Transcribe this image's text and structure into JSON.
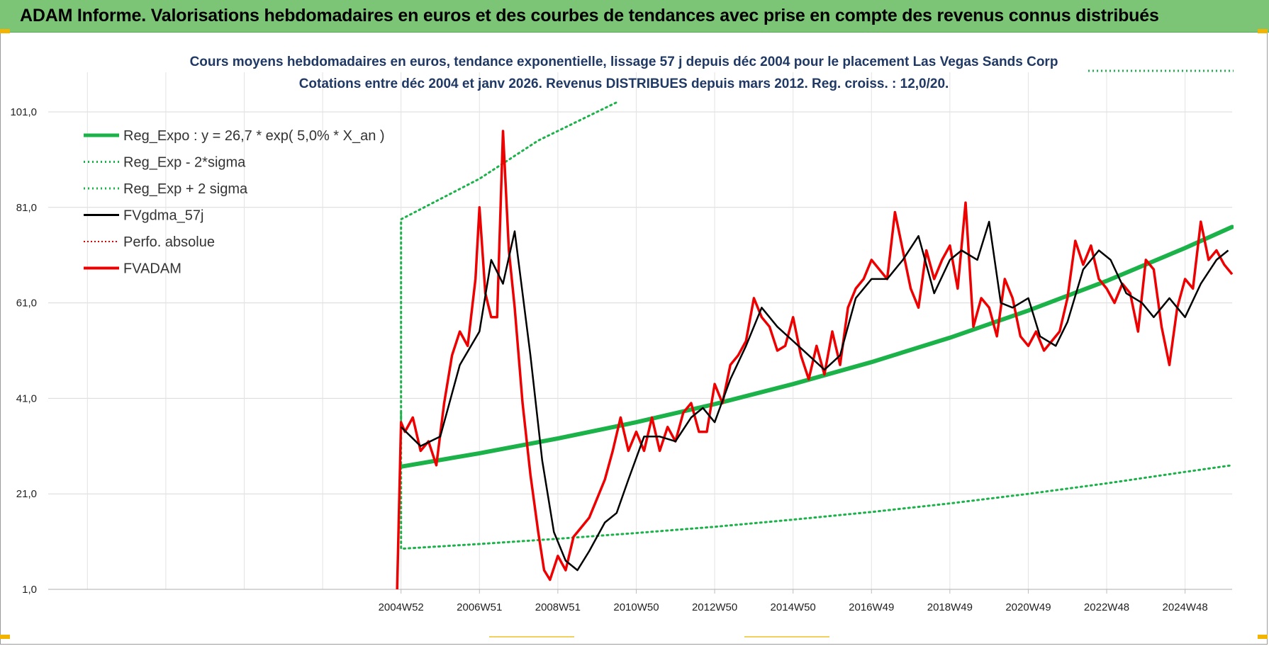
{
  "banner": {
    "title": "ADAM Informe. Valorisations hebdomadaires en euros et des courbes de tendances avec prise en compte des revenus connus distribués"
  },
  "colors": {
    "banner_bg": "#7cc576",
    "reg_expo": "#1cb24a",
    "reg_band": "#1cb24a",
    "fvgdma": "#000000",
    "perfo": "#e00000",
    "fvadam": "#ee0000",
    "title": "#1f3864"
  },
  "chart_data": {
    "type": "line",
    "title": "Cours moyens hebdomadaires en euros, tendance exponentielle, lissage 57 j depuis déc 2004 pour le placement Las Vegas Sands Corp",
    "subtitle": "Cotations entre déc 2004 et janv 2026. Revenus DISTRIBUES depuis mars 2012. Reg. croiss. : 12,0/20.",
    "ylim": [
      1,
      101
    ],
    "y_ticks": [
      "101,0",
      "81,0",
      "61,0",
      "41,0",
      "21,0",
      "1,0"
    ],
    "y_tick_values": [
      101,
      81,
      61,
      41,
      21,
      1
    ],
    "x_ticks": [
      "2004W52",
      "2006W51",
      "2008W51",
      "2010W50",
      "2012W50",
      "2014W50",
      "2016W49",
      "2018W49",
      "2020W49",
      "2022W48",
      "2024W48"
    ],
    "x_tick_years": [
      2005.0,
      2007.0,
      2009.0,
      2011.0,
      2013.0,
      2015.0,
      2017.0,
      2019.0,
      2021.0,
      2023.0,
      2025.0
    ],
    "xlim": [
      1996.0,
      2026.2
    ],
    "legend_position": "top-left",
    "legend": [
      {
        "key": "reg_expo",
        "label": "Reg_Expo : y = 26,7 * exp( 5,0% *  X_an )",
        "style": "thick"
      },
      {
        "key": "reg_low",
        "label": "Reg_Exp - 2*sigma",
        "style": "dotted-green"
      },
      {
        "key": "reg_high",
        "label": "Reg_Exp + 2 sigma",
        "style": "dotted-green"
      },
      {
        "key": "fvgdma",
        "label": "FVgdma_57j",
        "style": "solid-black"
      },
      {
        "key": "perfo",
        "label": "Perfo. absolue",
        "style": "dotted-red"
      },
      {
        "key": "fvadam",
        "label": "FVADAM",
        "style": "thick-red"
      }
    ],
    "series": [
      {
        "name": "Reg_Expo : y = 26,7 * exp( 5,0% *  X_an )",
        "key": "reg_expo",
        "x": [
          2005.0,
          2007.0,
          2009.0,
          2011.0,
          2013.0,
          2015.0,
          2017.0,
          2019.0,
          2021.0,
          2023.0,
          2025.0,
          2026.2
        ],
        "values": [
          26.7,
          29.5,
          32.6,
          36.0,
          39.8,
          44.0,
          48.6,
          53.7,
          59.4,
          65.6,
          72.5,
          76.9
        ]
      },
      {
        "name": "Reg_Exp - 2*sigma",
        "key": "reg_low",
        "x": [
          2005.0,
          2005.0,
          2007.0,
          2009.0,
          2011.0,
          2013.0,
          2015.0,
          2017.0,
          2019.0,
          2021.0,
          2023.0,
          2025.0,
          2026.2
        ],
        "values": [
          38.0,
          9.5,
          10.5,
          11.6,
          12.8,
          14.1,
          15.6,
          17.2,
          19.0,
          21.0,
          23.2,
          25.6,
          27.0
        ]
      },
      {
        "name": "Reg_Exp + 2 sigma",
        "key": "reg_high",
        "x": [
          2005.0,
          2005.0,
          2007.0,
          2008.5,
          2010.5
        ],
        "values": [
          36.0,
          78.5,
          87.0,
          95.0,
          103.0
        ]
      },
      {
        "name": "FVgdma_57j",
        "key": "fvgdma",
        "x": [
          2005.0,
          2005.5,
          2006.0,
          2006.5,
          2007.0,
          2007.3,
          2007.6,
          2007.9,
          2008.3,
          2008.6,
          2008.9,
          2009.2,
          2009.5,
          2009.8,
          2010.2,
          2010.5,
          2010.8,
          2011.2,
          2011.6,
          2012.0,
          2012.4,
          2012.7,
          2013.0,
          2013.4,
          2013.8,
          2014.2,
          2014.6,
          2015.0,
          2015.4,
          2015.8,
          2016.2,
          2016.6,
          2017.0,
          2017.4,
          2017.8,
          2018.2,
          2018.6,
          2019.0,
          2019.3,
          2019.7,
          2020.0,
          2020.3,
          2020.6,
          2021.0,
          2021.3,
          2021.7,
          2022.0,
          2022.4,
          2022.8,
          2023.1,
          2023.5,
          2023.9,
          2024.2,
          2024.6,
          2025.0,
          2025.4,
          2025.8,
          2026.1
        ],
        "values": [
          35.0,
          31.0,
          33.0,
          48.0,
          55.0,
          70.0,
          65.0,
          76.0,
          50.0,
          28.0,
          13.0,
          7.0,
          5.0,
          9.0,
          15.0,
          17.0,
          24.0,
          33.0,
          33.0,
          32.0,
          37.0,
          39.0,
          36.0,
          45.0,
          52.0,
          60.0,
          56.0,
          53.0,
          50.0,
          47.0,
          50.0,
          62.0,
          66.0,
          66.0,
          70.0,
          75.0,
          63.0,
          70.0,
          72.0,
          70.0,
          78.0,
          61.0,
          60.0,
          62.0,
          54.0,
          52.0,
          57.0,
          68.0,
          72.0,
          70.0,
          63.0,
          61.0,
          58.0,
          62.0,
          58.0,
          65.0,
          70.0,
          72.0
        ]
      },
      {
        "name": "FVADAM",
        "key": "fvadam",
        "x": [
          2004.9,
          2005.0,
          2005.1,
          2005.3,
          2005.5,
          2005.7,
          2005.9,
          2006.1,
          2006.3,
          2006.5,
          2006.7,
          2006.9,
          2007.0,
          2007.15,
          2007.3,
          2007.45,
          2007.6,
          2007.75,
          2007.9,
          2008.1,
          2008.3,
          2008.5,
          2008.65,
          2008.8,
          2009.0,
          2009.2,
          2009.4,
          2009.6,
          2009.8,
          2010.0,
          2010.2,
          2010.4,
          2010.6,
          2010.8,
          2011.0,
          2011.2,
          2011.4,
          2011.6,
          2011.8,
          2012.0,
          2012.2,
          2012.4,
          2012.6,
          2012.8,
          2013.0,
          2013.2,
          2013.4,
          2013.6,
          2013.8,
          2014.0,
          2014.2,
          2014.4,
          2014.6,
          2014.8,
          2015.0,
          2015.2,
          2015.4,
          2015.6,
          2015.8,
          2016.0,
          2016.2,
          2016.4,
          2016.6,
          2016.8,
          2017.0,
          2017.2,
          2017.4,
          2017.6,
          2017.8,
          2018.0,
          2018.2,
          2018.4,
          2018.6,
          2018.8,
          2019.0,
          2019.2,
          2019.4,
          2019.6,
          2019.8,
          2020.0,
          2020.2,
          2020.4,
          2020.6,
          2020.8,
          2021.0,
          2021.2,
          2021.4,
          2021.6,
          2021.8,
          2022.0,
          2022.2,
          2022.4,
          2022.6,
          2022.8,
          2023.0,
          2023.2,
          2023.4,
          2023.6,
          2023.8,
          2024.0,
          2024.2,
          2024.4,
          2024.6,
          2024.8,
          2025.0,
          2025.2,
          2025.4,
          2025.6,
          2025.8,
          2026.0,
          2026.2
        ],
        "values": [
          1.0,
          36.0,
          34.0,
          37.0,
          30.0,
          32.0,
          27.0,
          40.0,
          50.0,
          55.0,
          52.0,
          66.0,
          81.0,
          63.0,
          58.0,
          58.0,
          97.0,
          72.0,
          60.0,
          40.0,
          25.0,
          13.0,
          5.0,
          3.0,
          8.0,
          5.0,
          12.0,
          14.0,
          16.0,
          20.0,
          24.0,
          30.0,
          37.0,
          30.0,
          34.0,
          30.0,
          37.0,
          30.0,
          35.0,
          32.0,
          38.0,
          40.0,
          34.0,
          34.0,
          44.0,
          40.0,
          48.0,
          50.0,
          53.0,
          62.0,
          58.0,
          56.0,
          51.0,
          52.0,
          58.0,
          50.0,
          45.0,
          52.0,
          46.0,
          55.0,
          48.0,
          60.0,
          64.0,
          66.0,
          70.0,
          68.0,
          66.0,
          80.0,
          72.0,
          64.0,
          60.0,
          72.0,
          66.0,
          70.0,
          73.0,
          64.0,
          82.0,
          56.0,
          62.0,
          60.0,
          54.0,
          66.0,
          62.0,
          54.0,
          52.0,
          55.0,
          51.0,
          53.0,
          55.0,
          62.0,
          74.0,
          69.0,
          73.0,
          66.0,
          64.0,
          61.0,
          65.0,
          63.0,
          55.0,
          70.0,
          68.0,
          56.0,
          48.0,
          60.0,
          66.0,
          64.0,
          78.0,
          70.0,
          72.0,
          69.0,
          67.0
        ]
      }
    ]
  }
}
